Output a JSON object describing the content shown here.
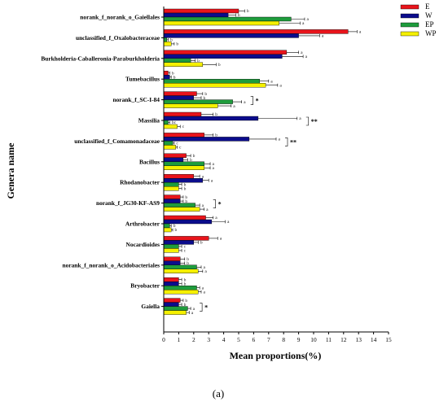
{
  "chart_data": {
    "type": "bar",
    "orientation": "horizontal",
    "ylabel": "Genera name",
    "xlabel": "Mean proportions(%)",
    "caption": "(a)",
    "xlim": [
      0,
      15
    ],
    "xticks": [
      0,
      1,
      2,
      3,
      4,
      5,
      6,
      7,
      8,
      9,
      10,
      11,
      12,
      13,
      14,
      15
    ],
    "grid": false,
    "legend_position": "top-right",
    "categories": [
      "norank_f_norank_o_Gaiellales",
      "unclassified_f_Oxalobacteraceae",
      "Burkholderia-Caballeronia-Paraburkholderia",
      "Tumebacillus",
      "norank_f_SC-I-84",
      "Massilia",
      "unclassified_f_Comamonadaceae",
      "Bacillus",
      "Rhodanobacter",
      "norank_f_JG30-KF-AS9",
      "Arthrobacter",
      "Nocardioides",
      "norank_f_norank_o_Acidobacteriales",
      "Bryobacter",
      "Gaiella"
    ],
    "series": [
      {
        "name": "E",
        "color": "#e8141b",
        "values": [
          5.0,
          12.3,
          8.2,
          0.3,
          2.2,
          2.5,
          2.7,
          1.5,
          2.0,
          1.1,
          2.8,
          3.0,
          1.1,
          1.0,
          1.1
        ]
      },
      {
        "name": "W",
        "color": "#0b0c8c",
        "values": [
          4.3,
          9.0,
          7.9,
          0.4,
          2.0,
          6.3,
          5.7,
          1.3,
          2.6,
          1.1,
          3.2,
          2.0,
          1.1,
          1.0,
          1.0
        ]
      },
      {
        "name": "EP",
        "color": "#1e9c3c",
        "values": [
          8.5,
          0.2,
          1.8,
          6.4,
          4.6,
          0.3,
          0.6,
          2.7,
          1.0,
          2.1,
          0.4,
          1.0,
          2.2,
          2.2,
          1.6
        ]
      },
      {
        "name": "WP",
        "color": "#f5f000",
        "values": [
          7.7,
          0.5,
          2.6,
          6.8,
          3.6,
          0.9,
          0.8,
          2.7,
          1.0,
          2.4,
          0.5,
          1.0,
          2.3,
          2.3,
          1.5
        ]
      }
    ],
    "errors": [
      [
        0.4,
        0.6,
        0.8,
        0.1,
        0.4,
        0.8,
        0.6,
        0.3,
        0.4,
        0.2,
        0.5,
        0.6,
        0.3,
        0.2,
        0.2
      ],
      [
        0.5,
        1.4,
        1.4,
        0.1,
        0.5,
        2.6,
        1.8,
        0.3,
        0.4,
        0.2,
        0.9,
        0.3,
        0.3,
        0.2,
        0.2
      ],
      [
        0.9,
        0.1,
        0.3,
        0.6,
        0.6,
        0.1,
        0.1,
        0.4,
        0.2,
        0.3,
        0.1,
        0.2,
        0.3,
        0.2,
        0.2
      ],
      [
        1.4,
        0.2,
        0.9,
        0.8,
        0.9,
        0.2,
        0.1,
        0.4,
        0.2,
        0.3,
        0.1,
        0.2,
        0.3,
        0.2,
        0.2
      ]
    ],
    "significance_letters": [
      [
        "b",
        "b",
        "a",
        "a"
      ],
      [
        "a",
        "a",
        "b",
        "b"
      ],
      [
        "a",
        "a",
        "b",
        "b"
      ],
      [
        "b",
        "b",
        "a",
        "a"
      ],
      [
        "b",
        "b",
        "a",
        "a"
      ],
      [
        "b",
        "a",
        "bc",
        "c"
      ],
      [
        "b",
        "a",
        "c",
        "c"
      ],
      [
        "b",
        "b",
        "a",
        "a"
      ],
      [
        "a",
        "a",
        "b",
        "b"
      ],
      [
        "b",
        "b",
        "a",
        "a"
      ],
      [
        "a",
        "a",
        "b",
        "b"
      ],
      [
        "a",
        "b",
        "c",
        "c"
      ],
      [
        "b",
        "b",
        "a",
        "a"
      ],
      [
        "b",
        "b",
        "a",
        "a"
      ],
      [
        "b",
        "b",
        "a",
        "a"
      ]
    ],
    "significance_stars": [
      "",
      "",
      "",
      "",
      "*",
      "**",
      "**",
      "",
      "",
      "*",
      "",
      "",
      "",
      "",
      "*"
    ]
  }
}
